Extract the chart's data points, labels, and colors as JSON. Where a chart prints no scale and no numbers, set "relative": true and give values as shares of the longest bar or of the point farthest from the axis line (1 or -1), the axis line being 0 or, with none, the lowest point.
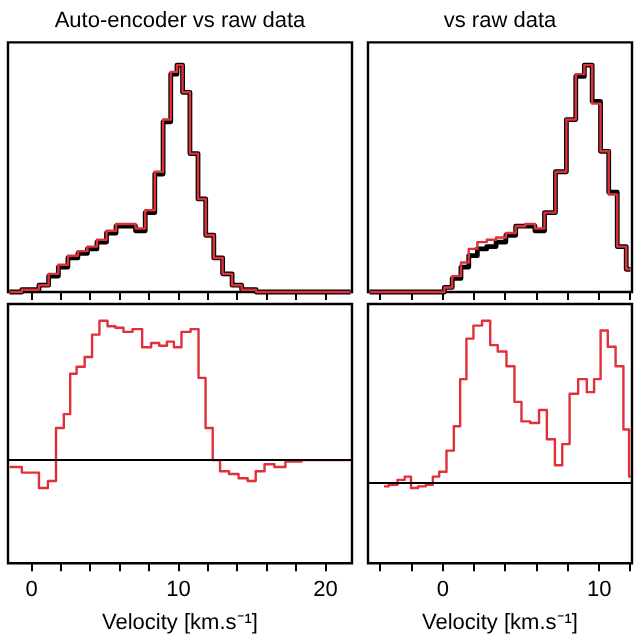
{
  "chart_data": [
    {
      "type": "step",
      "title": "Auto-encoder vs raw data",
      "relative": true,
      "tick_labels": false,
      "xlim": [
        -1.6,
        21.8
      ],
      "xticks": [
        0,
        {
          "value": 2,
          "label": null
        },
        {
          "value": 4,
          "label": null
        },
        {
          "value": 6,
          "label": null
        },
        {
          "value": 8,
          "label": null
        },
        10,
        {
          "value": 12,
          "label": null
        },
        {
          "value": 14,
          "label": null
        },
        {
          "value": 16,
          "label": null
        },
        {
          "value": 18,
          "label": null
        },
        20
      ],
      "x": [
        -1.5,
        0.18,
        0.83,
        1.5,
        2.15,
        2.8,
        3.5,
        4.1,
        4.8,
        5.4,
        6.1,
        6.75,
        7.4,
        8.07,
        8.7,
        9.2,
        9.74,
        10.05,
        10.5,
        11.05,
        11.6,
        12.1,
        12.7,
        13.3,
        13.99,
        14.6,
        15.96,
        21.7
      ],
      "series": [
        {
          "color": "#000000",
          "values": [
            0,
            0.01,
            0.03,
            0.07,
            0.11,
            0.15,
            0.17,
            0.19,
            0.22,
            0.26,
            0.29,
            0.29,
            0.27,
            0.35,
            0.52,
            0.75,
            0.96,
            1,
            0.88,
            0.61,
            0.41,
            0.25,
            0.15,
            0.08,
            0.03,
            0.01,
            0,
            0
          ]
        },
        {
          "color": "#e0303a",
          "values": [
            0,
            0.01,
            0.03,
            0.08,
            0.12,
            0.16,
            0.18,
            0.2,
            0.23,
            0.27,
            0.3,
            0.3,
            0.28,
            0.36,
            0.53,
            0.76,
            0.97,
            1,
            0.88,
            0.61,
            0.41,
            0.25,
            0.15,
            0.08,
            0.03,
            0.01,
            0,
            0
          ]
        }
      ]
    },
    {
      "type": "step",
      "title": "vs raw data",
      "relative": true,
      "tick_labels": false,
      "xlim": [
        -4.8,
        12.1
      ],
      "xticks": [
        {
          "value": -4,
          "label": null
        },
        {
          "value": -2,
          "label": null
        },
        0,
        {
          "value": 2,
          "label": null
        },
        {
          "value": 4,
          "label": null
        },
        {
          "value": 6,
          "label": null
        },
        {
          "value": 8,
          "label": null
        },
        10,
        {
          "value": 12,
          "label": null
        }
      ],
      "x": [
        -4.7,
        -0.1,
        0.28,
        0.9,
        1.4,
        1.9,
        2.5,
        3.1,
        3.7,
        4.35,
        4.96,
        5.57,
        6.2,
        6.8,
        7.6,
        8.2,
        8.8,
        9.3,
        9.8,
        10.37,
        10.85,
        11.46,
        12.0
      ],
      "series": [
        {
          "color": "#000000",
          "values": [
            0,
            0,
            0.02,
            0.06,
            0.11,
            0.16,
            0.19,
            0.2,
            0.22,
            0.25,
            0.29,
            0.29,
            0.27,
            0.35,
            0.53,
            0.76,
            0.95,
            1,
            0.84,
            0.62,
            0.44,
            0.2,
            0.1
          ]
        },
        {
          "color": "#e0303a",
          "values": [
            0,
            0,
            0.02,
            0.07,
            0.13,
            0.19,
            0.22,
            0.23,
            0.24,
            0.26,
            0.29,
            0.3,
            0.28,
            0.35,
            0.53,
            0.76,
            0.96,
            1,
            0.83,
            0.62,
            0.43,
            0.2,
            0.1
          ]
        }
      ]
    },
    {
      "type": "step",
      "xlabel": "Velocity [km.s⁻¹]",
      "relative": true,
      "tick_labels": "x",
      "xlim": [
        -1.6,
        21.8
      ],
      "xticks": [
        0,
        {
          "value": 2,
          "label": null
        },
        {
          "value": 4,
          "label": null
        },
        {
          "value": 6,
          "label": null
        },
        {
          "value": 8,
          "label": null
        },
        10,
        {
          "value": 12,
          "label": null
        },
        {
          "value": 14,
          "label": null
        },
        {
          "value": 16,
          "label": null
        },
        {
          "value": 18,
          "label": null
        },
        20
      ],
      "x": [
        -1.5,
        0.18,
        0.83,
        1.4,
        1.93,
        2.46,
        2.8,
        3.33,
        3.9,
        4.34,
        4.9,
        5.44,
        5.97,
        6.54,
        7.2,
        7.85,
        8.42,
        8.95,
        9.47,
        9.9,
        10.5,
        11.14,
        11.58,
        12.1,
        12.55,
        13.1,
        13.77,
        14.4,
        15.0,
        15.5,
        16.2,
        16.84,
        17.7,
        19.04,
        21.7
      ],
      "series": [
        {
          "color": "#e0303a",
          "values": [
            -0.05,
            -0.09,
            -0.2,
            -0.15,
            0.23,
            0.33,
            0.62,
            0.67,
            0.74,
            0.9,
            1,
            0.96,
            0.95,
            0.92,
            0.94,
            0.81,
            0.84,
            0.82,
            0.85,
            0.81,
            0.92,
            0.94,
            0.59,
            0.23,
            0,
            -0.08,
            -0.1,
            -0.13,
            -0.15,
            -0.08,
            -0.03,
            -0.05,
            -0.01,
            0,
            0
          ]
        }
      ],
      "ref_lines": [
        {
          "axis": "y",
          "value": 0,
          "color": "#000000"
        }
      ]
    },
    {
      "type": "step",
      "xlabel": "Velocity [km.s⁻¹]",
      "relative": true,
      "tick_labels": "x",
      "xlim": [
        -4.8,
        12.1
      ],
      "xticks": [
        {
          "value": -4,
          "label": null
        },
        {
          "value": -2,
          "label": null
        },
        0,
        {
          "value": 2,
          "label": null
        },
        {
          "value": 4,
          "label": null
        },
        {
          "value": 6,
          "label": null
        },
        {
          "value": 8,
          "label": null
        },
        10,
        {
          "value": 12,
          "label": null
        }
      ],
      "x": [
        -3.78,
        -3.17,
        -2.65,
        -2.25,
        -1.85,
        -1.34,
        -0.85,
        -0.45,
        -0.04,
        0.49,
        0.9,
        1.3,
        1.7,
        2.2,
        2.8,
        3.25,
        3.76,
        4.37,
        4.78,
        5.27,
        5.9,
        6.4,
        6.9,
        7.43,
        7.84,
        8.37,
        8.94,
        9.47,
        9.88,
        10.3,
        10.8,
        11.3,
        11.8,
        12.03
      ],
      "series": [
        {
          "color": "#e0303a",
          "values": [
            -0.02,
            -0.01,
            0.02,
            0.04,
            -0.03,
            -0.02,
            -0.01,
            0.04,
            0.07,
            0.2,
            0.35,
            0.64,
            0.89,
            0.97,
            1,
            0.85,
            0.81,
            0.72,
            0.5,
            0.38,
            0.37,
            0.45,
            0.27,
            0.11,
            0.24,
            0.55,
            0.64,
            0.56,
            0.64,
            0.94,
            0.84,
            0.72,
            0.33,
            0.04
          ]
        }
      ],
      "ref_lines": [
        {
          "axis": "y",
          "value": 0,
          "color": "#000000"
        }
      ]
    }
  ]
}
